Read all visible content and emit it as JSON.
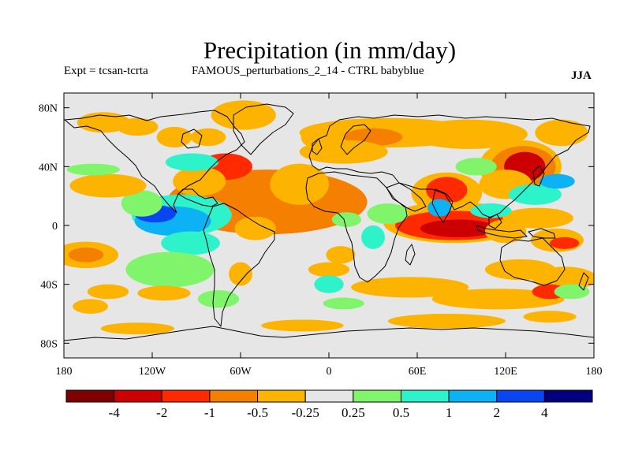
{
  "header": {
    "title": "Precipitation (in mm/day)",
    "left": "Expt = tcsan-tcrta",
    "center": "FAMOUS_perturbations_2_14 - CTRL babyblue",
    "right": "JJA"
  },
  "chart_data": {
    "type": "heatmap",
    "title": "Precipitation (in mm/day)",
    "xlim": [
      -180,
      180
    ],
    "ylim": [
      -90,
      90
    ],
    "x_ticks": [
      {
        "value": -180,
        "label": "180"
      },
      {
        "value": -120,
        "label": "120W"
      },
      {
        "value": -60,
        "label": "60W"
      },
      {
        "value": 0,
        "label": "0"
      },
      {
        "value": 60,
        "label": "60E"
      },
      {
        "value": 120,
        "label": "120E"
      },
      {
        "value": 180,
        "label": "180"
      }
    ],
    "y_ticks": [
      {
        "value": 80,
        "label": "80N"
      },
      {
        "value": 40,
        "label": "40N"
      },
      {
        "value": 0,
        "label": "0"
      },
      {
        "value": -40,
        "label": "40S"
      },
      {
        "value": -80,
        "label": "80S"
      }
    ],
    "background_color": "#e6e6e6",
    "colorbar": {
      "colors": [
        "#7f0000",
        "#cc0000",
        "#ff2a00",
        "#f57f00",
        "#fcb400",
        "#e6e6e6",
        "#80f56b",
        "#2ef2c9",
        "#0db2f5",
        "#0a45f2",
        "#00007f"
      ],
      "labels": [
        "-4",
        "-2",
        "-1",
        "-0.5",
        "-0.25",
        "0.25",
        "0.5",
        "1",
        "2",
        "4"
      ]
    },
    "anomalies": [
      {
        "lon": -48,
        "lat": 15,
        "rlon": 44,
        "rlat": 11,
        "level": 0
      },
      {
        "lon": -33,
        "lat": 16,
        "rlon": 25,
        "rlat": 7,
        "level": 0
      },
      {
        "lon": -40,
        "lat": 15,
        "rlon": 60,
        "rlat": 16,
        "level": 1
      },
      {
        "lon": -42,
        "lat": 16,
        "rlon": 68,
        "rlat": 22,
        "level": 3
      },
      {
        "lon": -20,
        "lat": 28,
        "rlon": 20,
        "rlat": 14,
        "level": 4
      },
      {
        "lon": -70,
        "lat": 40,
        "rlon": 18,
        "rlat": 9,
        "level": 2
      },
      {
        "lon": -88,
        "lat": 30,
        "rlon": 18,
        "rlat": 10,
        "level": 4
      },
      {
        "lon": -100,
        "lat": 7,
        "rlon": 34,
        "rlat": 14,
        "level": 7
      },
      {
        "lon": -106,
        "lat": 3,
        "rlon": 26,
        "rlat": 10,
        "level": 8
      },
      {
        "lon": -118,
        "lat": 8,
        "rlon": 14,
        "rlat": 6,
        "level": 9
      },
      {
        "lon": -94,
        "lat": -12,
        "rlon": 20,
        "rlat": 8,
        "level": 7
      },
      {
        "lon": -127,
        "lat": 15,
        "rlon": 14,
        "rlat": 9,
        "level": 6
      },
      {
        "lon": -50,
        "lat": -2,
        "rlon": 14,
        "rlat": 8,
        "level": 4
      },
      {
        "lon": -150,
        "lat": 27,
        "rlon": 26,
        "rlat": 8,
        "level": 4
      },
      {
        "lon": -160,
        "lat": 38,
        "rlon": 18,
        "rlat": 4,
        "level": 6
      },
      {
        "lon": -93,
        "lat": 43,
        "rlon": 18,
        "rlat": 6,
        "level": 7
      },
      {
        "lon": -105,
        "lat": 60,
        "rlon": 12,
        "rlat": 7,
        "level": 4
      },
      {
        "lon": -82,
        "lat": 60,
        "rlon": 12,
        "rlat": 6,
        "level": 4
      },
      {
        "lon": -130,
        "lat": 67,
        "rlon": 14,
        "rlat": 6,
        "level": 4
      },
      {
        "lon": -153,
        "lat": 70,
        "rlon": 18,
        "rlat": 7,
        "level": 4
      },
      {
        "lon": -58,
        "lat": 75,
        "rlon": 22,
        "rlat": 10,
        "level": 4
      },
      {
        "lon": -7,
        "lat": 60,
        "rlon": 12,
        "rlat": 8,
        "level": 4
      },
      {
        "lon": 40,
        "lat": 63,
        "rlon": 60,
        "rlat": 10,
        "level": 4
      },
      {
        "lon": 30,
        "lat": 60,
        "rlon": 20,
        "rlat": 6,
        "level": 3
      },
      {
        "lon": 10,
        "lat": 50,
        "rlon": 30,
        "rlat": 8,
        "level": 4
      },
      {
        "lon": 95,
        "lat": 62,
        "rlon": 40,
        "rlat": 10,
        "level": 4
      },
      {
        "lon": 158,
        "lat": 63,
        "rlon": 18,
        "rlat": 9,
        "level": 4
      },
      {
        "lon": 130,
        "lat": 40,
        "rlon": 28,
        "rlat": 18,
        "level": 4
      },
      {
        "lon": 132,
        "lat": 40,
        "rlon": 22,
        "rlat": 14,
        "level": 3
      },
      {
        "lon": 133,
        "lat": 40,
        "rlon": 14,
        "rlat": 10,
        "level": 1
      },
      {
        "lon": 120,
        "lat": 28,
        "rlon": 18,
        "rlat": 10,
        "level": 4
      },
      {
        "lon": 80,
        "lat": 22,
        "rlon": 24,
        "rlat": 14,
        "level": 4
      },
      {
        "lon": 80,
        "lat": 24,
        "rlon": 14,
        "rlat": 9,
        "level": 2
      },
      {
        "lon": 85,
        "lat": 2,
        "rlon": 48,
        "rlat": 14,
        "level": 4
      },
      {
        "lon": 85,
        "lat": 0,
        "rlon": 40,
        "rlat": 10,
        "level": 2
      },
      {
        "lon": 88,
        "lat": -2,
        "rlon": 26,
        "rlat": 6,
        "level": 1
      },
      {
        "lon": 120,
        "lat": -4,
        "rlon": 14,
        "rlat": 8,
        "level": 4
      },
      {
        "lon": 155,
        "lat": -10,
        "rlon": 18,
        "rlat": 8,
        "level": 4
      },
      {
        "lon": 160,
        "lat": -12,
        "rlon": 10,
        "rlat": 4,
        "level": 2
      },
      {
        "lon": 142,
        "lat": 5,
        "rlon": 24,
        "rlat": 7,
        "level": 4
      },
      {
        "lon": 130,
        "lat": -30,
        "rlon": 24,
        "rlat": 7,
        "level": 4
      },
      {
        "lon": 160,
        "lat": -36,
        "rlon": 22,
        "rlat": 8,
        "level": 4
      },
      {
        "lon": 75,
        "lat": 12,
        "rlon": 8,
        "rlat": 6,
        "level": 8
      },
      {
        "lon": 110,
        "lat": 10,
        "rlon": 14,
        "rlat": 5,
        "level": 7
      },
      {
        "lon": 140,
        "lat": 21,
        "rlon": 18,
        "rlat": 7,
        "level": 7
      },
      {
        "lon": 155,
        "lat": 30,
        "rlon": 12,
        "rlat": 5,
        "level": 8
      },
      {
        "lon": 100,
        "lat": 40,
        "rlon": 14,
        "rlat": 6,
        "level": 6
      },
      {
        "lon": 40,
        "lat": 8,
        "rlon": 14,
        "rlat": 7,
        "level": 6
      },
      {
        "lon": 12,
        "lat": 4,
        "rlon": 10,
        "rlat": 5,
        "level": 6
      },
      {
        "lon": 30,
        "lat": -8,
        "rlon": 8,
        "rlat": 8,
        "level": 7
      },
      {
        "lon": 8,
        "lat": -20,
        "rlon": 10,
        "rlat": 6,
        "level": 4
      },
      {
        "lon": 0,
        "lat": -30,
        "rlon": 14,
        "rlat": 5,
        "level": 4
      },
      {
        "lon": 0,
        "lat": -40,
        "rlon": 10,
        "rlat": 6,
        "level": 7
      },
      {
        "lon": -108,
        "lat": -30,
        "rlon": 30,
        "rlat": 12,
        "level": 6
      },
      {
        "lon": -75,
        "lat": -50,
        "rlon": 14,
        "rlat": 6,
        "level": 6
      },
      {
        "lon": -165,
        "lat": -20,
        "rlon": 22,
        "rlat": 9,
        "level": 4
      },
      {
        "lon": -165,
        "lat": -20,
        "rlon": 12,
        "rlat": 5,
        "level": 3
      },
      {
        "lon": -112,
        "lat": -46,
        "rlon": 18,
        "rlat": 5,
        "level": 4
      },
      {
        "lon": -150,
        "lat": -45,
        "rlon": 14,
        "rlat": 5,
        "level": 4
      },
      {
        "lon": -162,
        "lat": -55,
        "rlon": 12,
        "rlat": 5,
        "level": 4
      },
      {
        "lon": -130,
        "lat": -70,
        "rlon": 25,
        "rlat": 4,
        "level": 4
      },
      {
        "lon": -60,
        "lat": -33,
        "rlon": 8,
        "rlat": 8,
        "level": 4
      },
      {
        "lon": -18,
        "lat": -68,
        "rlon": 28,
        "rlat": 4,
        "level": 4
      },
      {
        "lon": 55,
        "lat": -42,
        "rlon": 40,
        "rlat": 7,
        "level": 4
      },
      {
        "lon": 115,
        "lat": -50,
        "rlon": 45,
        "rlat": 7,
        "level": 4
      },
      {
        "lon": 150,
        "lat": -45,
        "rlon": 12,
        "rlat": 5,
        "level": 2
      },
      {
        "lon": 80,
        "lat": -65,
        "rlon": 40,
        "rlat": 5,
        "level": 4
      },
      {
        "lon": 150,
        "lat": -62,
        "rlon": 18,
        "rlat": 4,
        "level": 4
      },
      {
        "lon": 10,
        "lat": -53,
        "rlon": 14,
        "rlat": 4,
        "level": 6
      },
      {
        "lon": 165,
        "lat": -45,
        "rlon": 12,
        "rlat": 5,
        "level": 6
      }
    ]
  }
}
